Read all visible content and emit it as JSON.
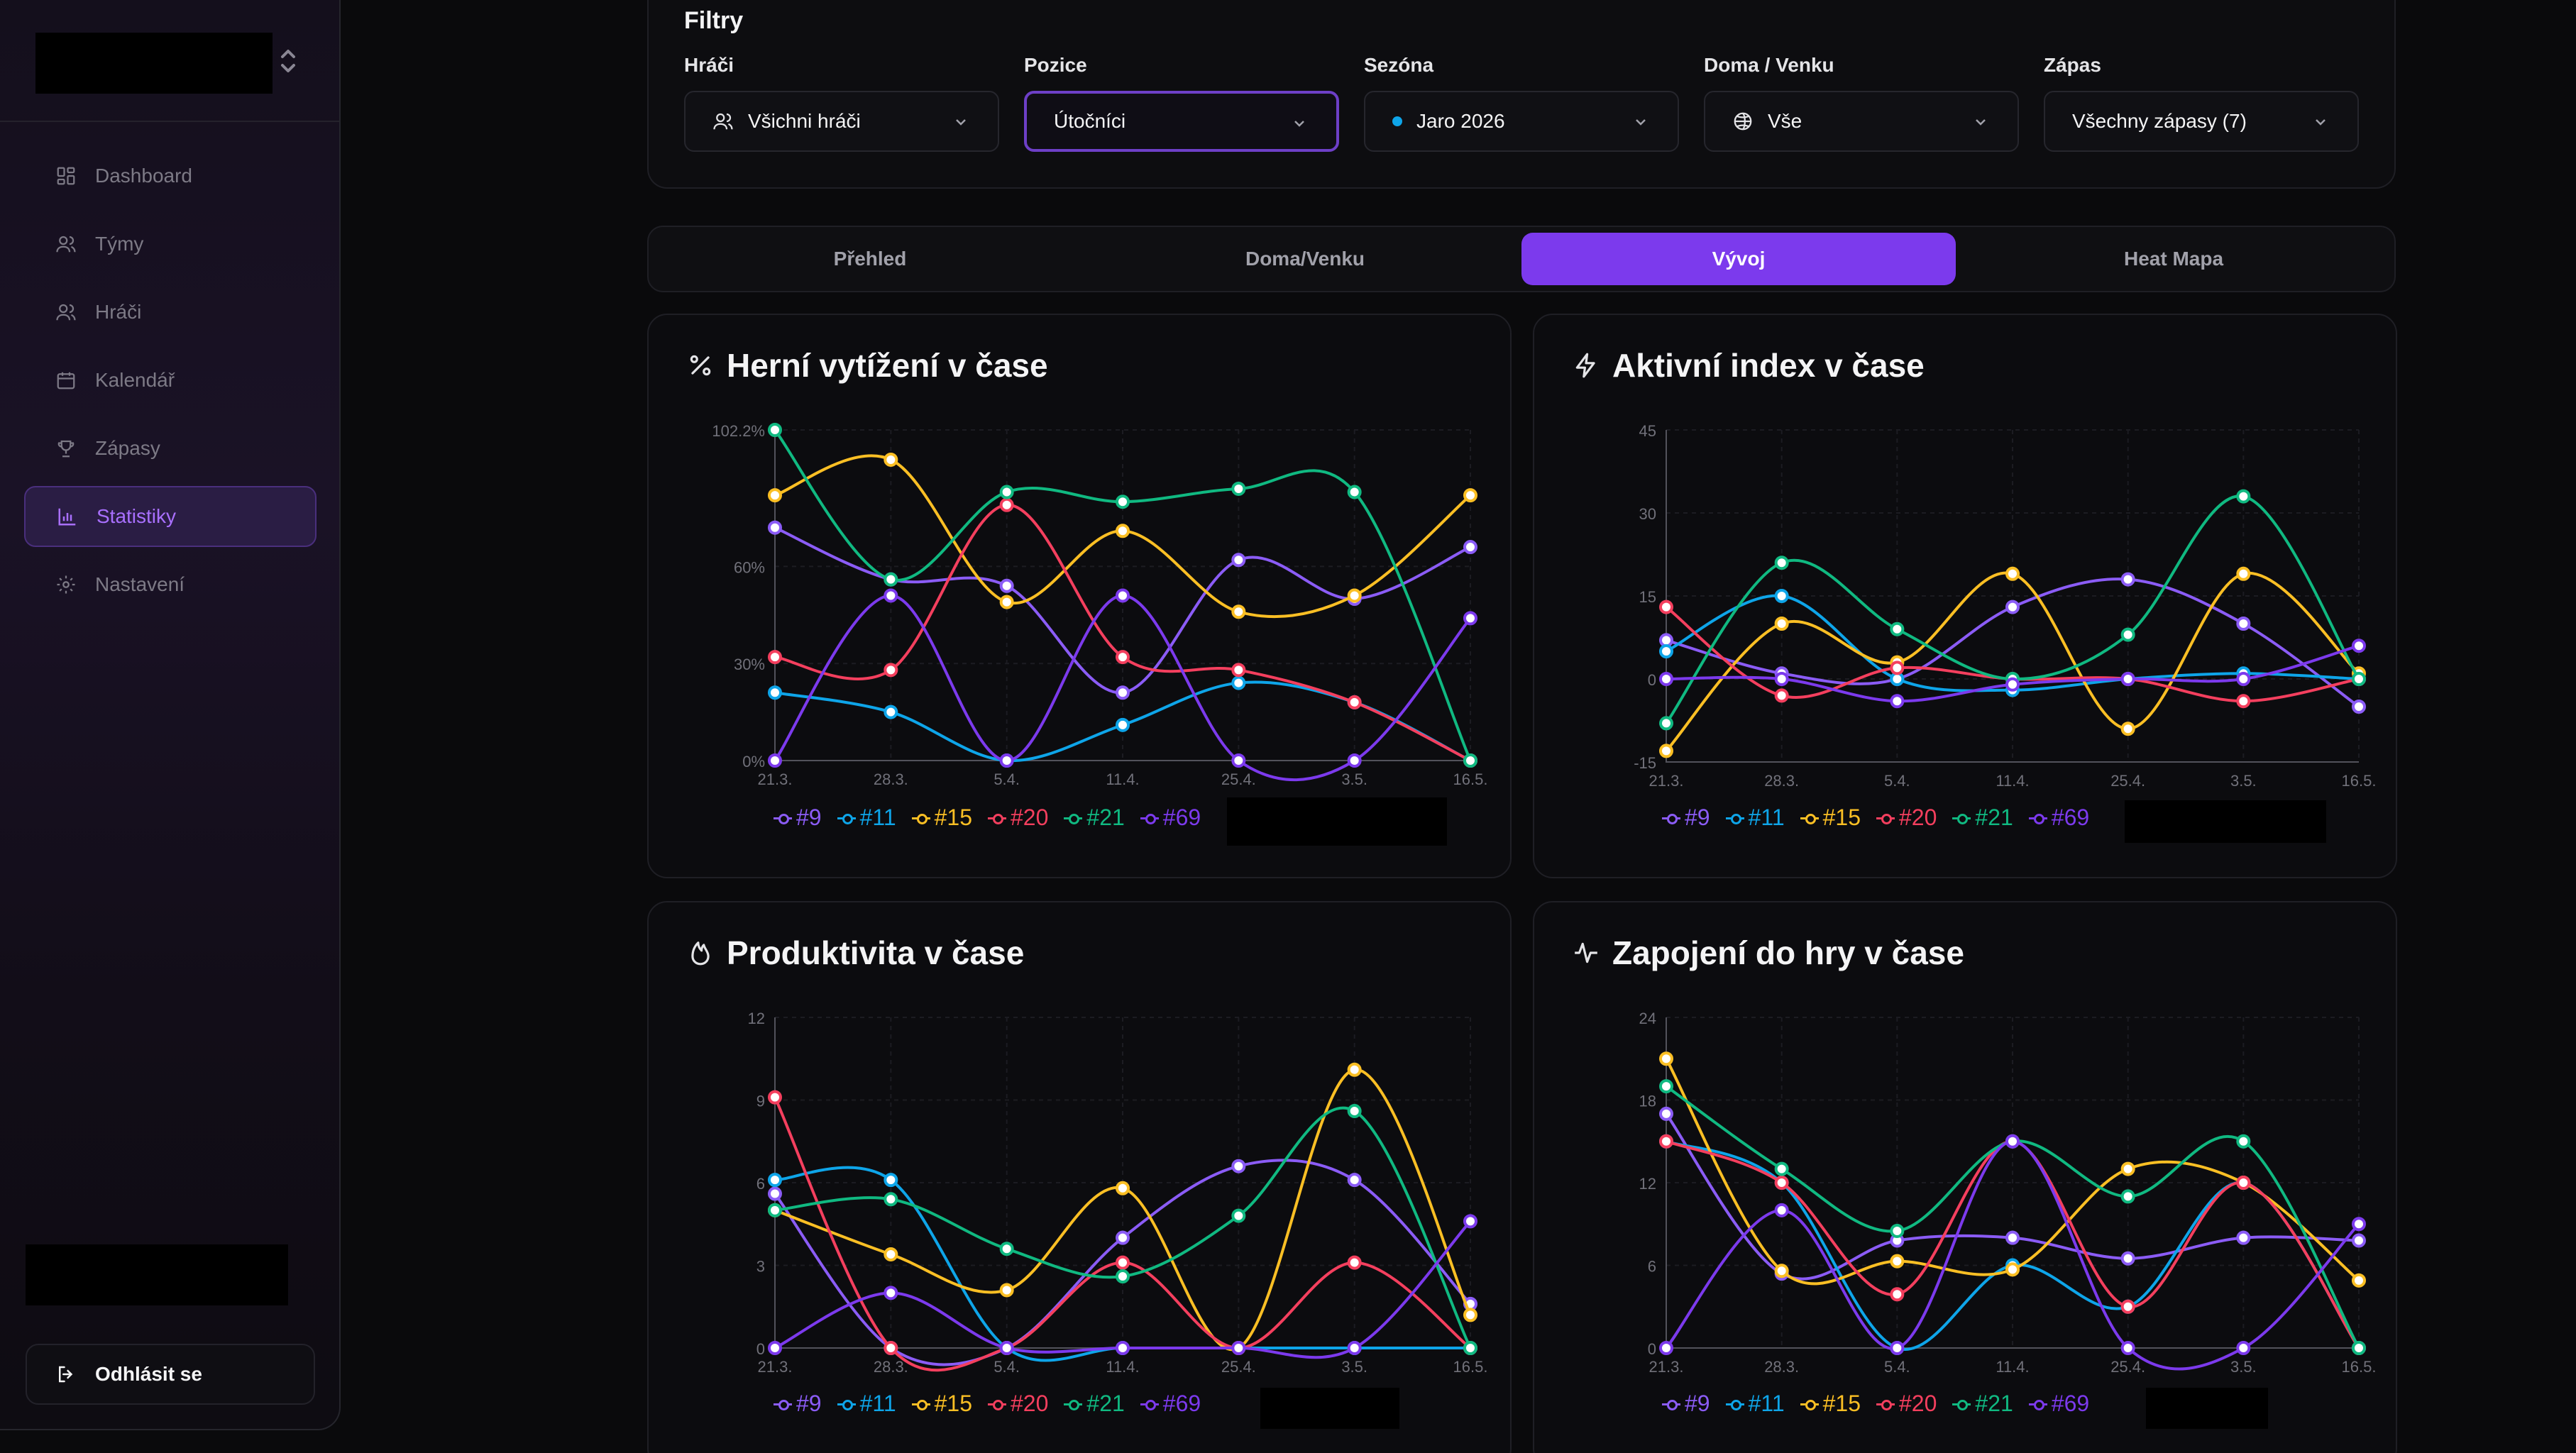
{
  "nav": {
    "items": [
      {
        "label": "Dashboard",
        "icon": "dashboard-icon",
        "active": false
      },
      {
        "label": "Týmy",
        "icon": "users-icon",
        "active": false
      },
      {
        "label": "Hráči",
        "icon": "users-icon",
        "active": false
      },
      {
        "label": "Kalendář",
        "icon": "calendar-icon",
        "active": false
      },
      {
        "label": "Zápasy",
        "icon": "trophy-icon",
        "active": false
      },
      {
        "label": "Statistiky",
        "icon": "bar-chart-icon",
        "active": true
      },
      {
        "label": "Nastavení",
        "icon": "gear-icon",
        "active": false
      }
    ],
    "logout_label": "Odhlásit se"
  },
  "filters": {
    "title": "Filtry",
    "players": {
      "label": "Hráči",
      "value": "Všichni hráči"
    },
    "position": {
      "label": "Pozice",
      "value": "Útočníci"
    },
    "season": {
      "label": "Sezóna",
      "value": "Jaro 2026",
      "dot_color": "#0ea5e9"
    },
    "venue": {
      "label": "Doma / Venku",
      "value": "Vše"
    },
    "match": {
      "label": "Zápas",
      "value": "Všechny zápasy (7)"
    }
  },
  "tabs": [
    {
      "label": "Přehled",
      "active": false
    },
    {
      "label": "Doma/Venku",
      "active": false
    },
    {
      "label": "Vývoj",
      "active": true
    },
    {
      "label": "Heat Mapa",
      "active": false
    }
  ],
  "colors": {
    "#9": "#8b5cf6",
    "#11": "#0ea5e9",
    "#15": "#fbbf24",
    "#20": "#f43f5e",
    "#21": "#10b981",
    "#69": "#7c3aed",
    "accent": "#7c3aed"
  },
  "chart_data": [
    {
      "type": "line",
      "title": "Herní vytížení v čase",
      "icon": "percent-icon",
      "x": [
        "21.3.",
        "28.3.",
        "5.4.",
        "11.4.",
        "25.4.",
        "3.5.",
        "16.5."
      ],
      "y_ticks": [
        "0%",
        "30%",
        "60%",
        "102.2%"
      ],
      "ylim": [
        0,
        102.2
      ],
      "series": [
        {
          "name": "#9",
          "values": [
            72,
            56,
            54,
            21,
            62,
            50,
            66
          ]
        },
        {
          "name": "#11",
          "values": [
            21,
            15,
            0,
            11,
            24,
            18,
            0
          ]
        },
        {
          "name": "#15",
          "values": [
            82,
            93,
            49,
            71,
            46,
            51,
            82
          ]
        },
        {
          "name": "#20",
          "values": [
            32,
            28,
            79,
            32,
            28,
            18,
            0
          ]
        },
        {
          "name": "#21",
          "values": [
            104,
            56,
            83,
            80,
            84,
            83,
            0
          ]
        },
        {
          "name": "#69",
          "values": [
            0,
            51,
            0,
            51,
            0,
            0,
            44
          ]
        }
      ]
    },
    {
      "type": "line",
      "title": "Aktivní index v čase",
      "icon": "lightning-icon",
      "x": [
        "21.3.",
        "28.3.",
        "5.4.",
        "11.4.",
        "25.4.",
        "3.5.",
        "16.5."
      ],
      "y_ticks": [
        "-15",
        "0",
        "15",
        "30",
        "45"
      ],
      "ylim": [
        -15,
        45
      ],
      "series": [
        {
          "name": "#9",
          "values": [
            7,
            1,
            0,
            13,
            18,
            10,
            -5
          ]
        },
        {
          "name": "#11",
          "values": [
            5,
            15,
            0,
            -2,
            0,
            1,
            0
          ]
        },
        {
          "name": "#15",
          "values": [
            -13,
            10,
            3,
            19,
            -9,
            19,
            1
          ]
        },
        {
          "name": "#20",
          "values": [
            13,
            -3,
            2,
            0,
            0,
            -4,
            0
          ]
        },
        {
          "name": "#21",
          "values": [
            -8,
            21,
            9,
            0,
            8,
            33,
            0
          ]
        },
        {
          "name": "#69",
          "values": [
            0,
            0,
            -4,
            -1,
            0,
            0,
            6
          ]
        }
      ]
    },
    {
      "type": "line",
      "title": "Produktivita v čase",
      "icon": "flame-icon",
      "x": [
        "21.3.",
        "28.3.",
        "5.4.",
        "11.4.",
        "25.4.",
        "3.5.",
        "16.5."
      ],
      "y_ticks": [
        "0",
        "3",
        "6",
        "9",
        "12"
      ],
      "ylim": [
        0,
        12
      ],
      "series": [
        {
          "name": "#9",
          "values": [
            5.6,
            0,
            0,
            4.0,
            6.6,
            6.1,
            1.6
          ]
        },
        {
          "name": "#11",
          "values": [
            6.1,
            6.1,
            0,
            0,
            0,
            0,
            0
          ]
        },
        {
          "name": "#15",
          "values": [
            5.0,
            3.4,
            2.1,
            5.8,
            0,
            10.1,
            1.2
          ]
        },
        {
          "name": "#20",
          "values": [
            9.1,
            0,
            0,
            3.1,
            0,
            3.1,
            0
          ]
        },
        {
          "name": "#21",
          "values": [
            5.0,
            5.4,
            3.6,
            2.6,
            4.8,
            8.6,
            0
          ]
        },
        {
          "name": "#69",
          "values": [
            0,
            2.0,
            0,
            0,
            0,
            0,
            4.6
          ]
        }
      ]
    },
    {
      "type": "line",
      "title": "Zapojení do hry v čase",
      "icon": "activity-icon",
      "x": [
        "21.3.",
        "28.3.",
        "5.4.",
        "11.4.",
        "25.4.",
        "3.5.",
        "16.5."
      ],
      "y_ticks": [
        "0",
        "6",
        "12",
        "18",
        "24"
      ],
      "ylim": [
        0,
        24
      ],
      "series": [
        {
          "name": "#9",
          "values": [
            17,
            5.4,
            7.8,
            8.0,
            6.5,
            8.0,
            7.8
          ]
        },
        {
          "name": "#11",
          "values": [
            15,
            12,
            0,
            6.0,
            3.0,
            12,
            0
          ]
        },
        {
          "name": "#15",
          "values": [
            21,
            5.6,
            6.3,
            5.7,
            13,
            12,
            4.9
          ]
        },
        {
          "name": "#20",
          "values": [
            15,
            12,
            3.9,
            15,
            3.0,
            12,
            0
          ]
        },
        {
          "name": "#21",
          "values": [
            19,
            13,
            8.5,
            15,
            11,
            15,
            0
          ]
        },
        {
          "name": "#69",
          "values": [
            0,
            10,
            0,
            15,
            0,
            0,
            9
          ]
        }
      ]
    }
  ]
}
